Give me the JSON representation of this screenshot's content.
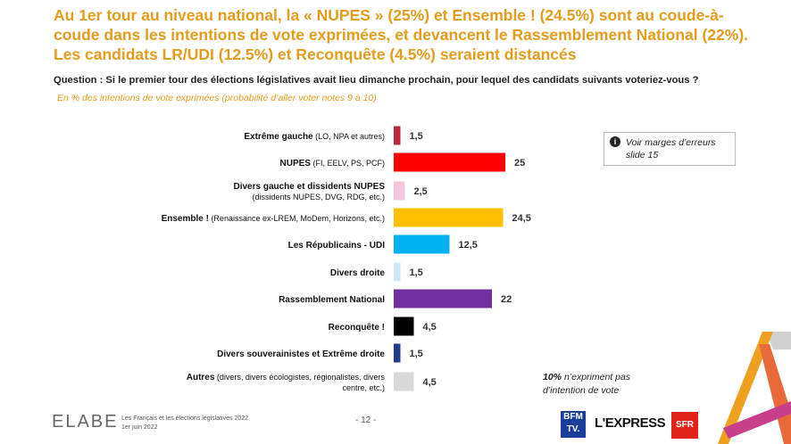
{
  "title": "Au 1er tour au niveau national, la « NUPES » (25%) et Ensemble ! (24.5%) sont au coude-à-coude dans les intentions de vote exprimées, et devancent le Rassemblement National (22%). Les candidats LR/UDI (12.5%) et Reconquête (4.5%) seraient distancés",
  "question": "Question : Si le premier tour des élections législatives avait lieu dimanche prochain, pour lequel des candidats suivants voteriez-vous ?",
  "subtitle": "En % des intentions de vote exprimées (probabilité d’aller voter notes 9 à 10)",
  "note": {
    "icon": "info-icon",
    "text": "Voir marges d’erreurs slide 15"
  },
  "abstention": {
    "value": "10%",
    "text": "n’expriment pas d’intention de vote"
  },
  "footer": {
    "logo": "ELABE",
    "study_line1": "Les Français et les élections législatives 2022",
    "study_line2": "1er juin 2022",
    "page": "- 12 -",
    "partners": [
      "BFM TV.",
      "L'EXPRESS",
      "SFR"
    ]
  },
  "chart_data": {
    "type": "bar",
    "orientation": "horizontal",
    "title": "",
    "xlabel": "",
    "ylabel": "",
    "xlim": [
      0,
      25
    ],
    "grid": false,
    "categories": [
      {
        "name": "Extrême gauche",
        "detail": "(LO, NPA et autres)",
        "value": 1.5,
        "label": "1,5",
        "color": "#c0283a"
      },
      {
        "name": "NUPES",
        "detail": "(FI, EELV, PS, PCF)",
        "value": 25,
        "label": "25",
        "color": "#ff0000"
      },
      {
        "name": "Divers gauche et dissidents NUPES",
        "detail": "(dissidents NUPES, DVG, RDG, etc.)",
        "value": 2.5,
        "label": "2,5",
        "color": "#f3c6dc"
      },
      {
        "name": "Ensemble !",
        "detail": "(Renaissance ex-LREM, MoDem, Horizons, etc.)",
        "value": 24.5,
        "label": "24,5",
        "color": "#ffc000"
      },
      {
        "name": "Les Républicains - UDI",
        "detail": "",
        "value": 12.5,
        "label": "12,5",
        "color": "#00b0f0"
      },
      {
        "name": "Divers droite",
        "detail": "",
        "value": 1.5,
        "label": "1,5",
        "color": "#cde8f8"
      },
      {
        "name": "Rassemblement National",
        "detail": "",
        "value": 22,
        "label": "22",
        "color": "#7030a0"
      },
      {
        "name": "Reconquête !",
        "detail": "",
        "value": 4.5,
        "label": "4,5",
        "color": "#000000"
      },
      {
        "name": "Divers souverainistes et Extrême droite",
        "detail": "",
        "value": 1.5,
        "label": "1,5",
        "color": "#1f3c8c"
      },
      {
        "name": "Autres",
        "detail": "(divers, divers écologistes, régionalistes, divers centre, etc.)",
        "value": 4.5,
        "label": "4,5",
        "color": "#d9d9d9"
      }
    ]
  }
}
